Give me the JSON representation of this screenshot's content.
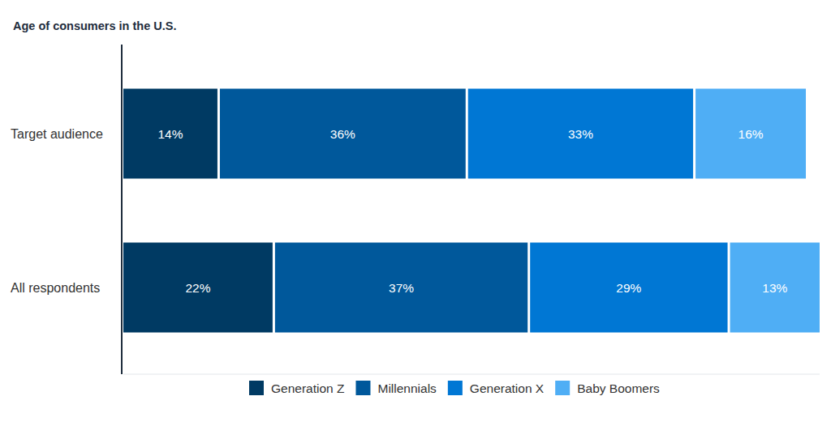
{
  "chart_data": {
    "type": "bar",
    "title": "Age of consumers in the U.S.",
    "orientation": "horizontal",
    "stacked": true,
    "data_labels": true,
    "tick_labels": "y",
    "legend": "bottom",
    "categories": [
      "Target audience",
      "All respondents"
    ],
    "xlim": [
      0,
      101
    ],
    "series": [
      {
        "name": "Generation Z",
        "color": "#003a63",
        "values": [
          14,
          22
        ],
        "value_labels": [
          "14%",
          "22%"
        ]
      },
      {
        "name": "Millennials",
        "color": "#00589b",
        "values": [
          36,
          37
        ],
        "value_labels": [
          "36%",
          "37%"
        ]
      },
      {
        "name": "Generation X",
        "color": "#0077d4",
        "values": [
          33,
          29
        ],
        "value_labels": [
          "33%",
          "29%"
        ]
      },
      {
        "name": "Baby Boomers",
        "color": "#4faef5",
        "values": [
          16,
          13
        ],
        "value_labels": [
          "16%",
          "13%"
        ]
      }
    ]
  }
}
